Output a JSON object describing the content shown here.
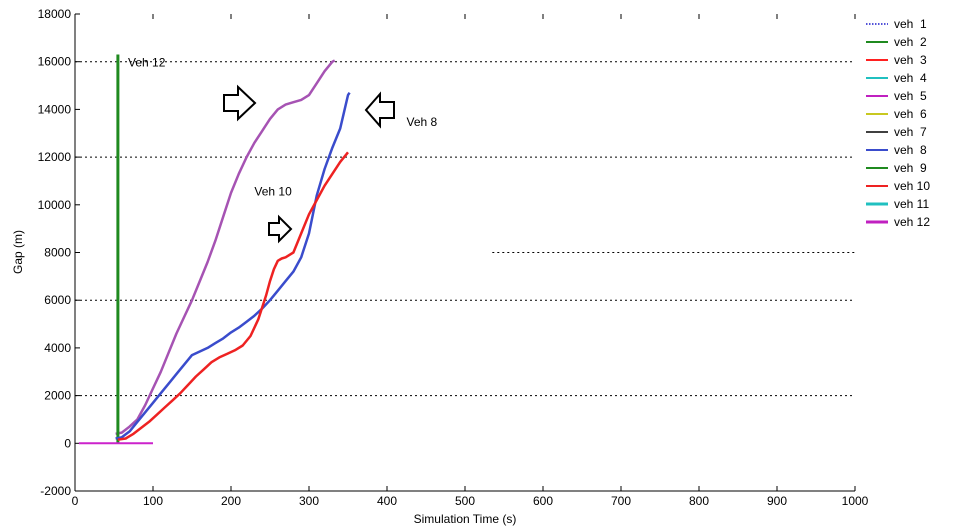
{
  "chart_data": {
    "type": "line",
    "xlabel": "Simulation Time (s)",
    "ylabel": "Gap (m)",
    "xlim": [
      0,
      1000
    ],
    "ylim": [
      -2000,
      18000
    ],
    "x_ticks": [
      "0",
      "100",
      "200",
      "300",
      "400",
      "500",
      "600",
      "700",
      "800",
      "900",
      "1000"
    ],
    "y_ticks": [
      "-2000",
      "0",
      "2000",
      "4000",
      "6000",
      "8000",
      "10000",
      "12000",
      "14000",
      "16000",
      "18000"
    ],
    "grid": "partial dashed horizontal lines",
    "legend_position": "right",
    "series": [
      {
        "name": "veh  1",
        "color": "#1a1acc",
        "style": "dotted",
        "x": [],
        "y": []
      },
      {
        "name": "veh  2",
        "color": "#1f8a1f",
        "style": "solid",
        "x": [],
        "y": []
      },
      {
        "name": "veh  3",
        "color": "#ff2020",
        "style": "solid",
        "x": [],
        "y": []
      },
      {
        "name": "veh  4",
        "color": "#20c0c0",
        "style": "solid",
        "x": [],
        "y": []
      },
      {
        "name": "veh  5",
        "color": "#c020c0",
        "style": "solid",
        "x": [],
        "y": []
      },
      {
        "name": "veh  6",
        "color": "#c8c820",
        "style": "solid",
        "x": [],
        "y": []
      },
      {
        "name": "veh  7",
        "color": "#404040",
        "style": "solid",
        "x": [],
        "y": []
      },
      {
        "name": "veh  8",
        "color": "#3a4ccc",
        "style": "solid",
        "x": [
          52,
          60,
          70,
          80,
          90,
          100,
          110,
          120,
          130,
          140,
          150,
          160,
          170,
          180,
          190,
          200,
          210,
          220,
          230,
          240,
          250,
          260,
          270,
          280,
          290,
          300,
          310,
          320,
          330,
          340,
          345,
          350,
          352
        ],
        "y": [
          200,
          250,
          500,
          900,
          1300,
          1700,
          2100,
          2500,
          2900,
          3300,
          3700,
          3850,
          4000,
          4200,
          4400,
          4650,
          4850,
          5100,
          5350,
          5650,
          6000,
          6400,
          6800,
          7200,
          7800,
          8800,
          10400,
          11500,
          12400,
          13200,
          13900,
          14600,
          14700
        ]
      },
      {
        "name": "veh  9",
        "color": "#1f8a1f",
        "style": "solid",
        "x": [],
        "y": []
      },
      {
        "name": "veh 10",
        "color": "#ee2222",
        "style": "solid",
        "x": [
          55,
          65,
          75,
          85,
          95,
          105,
          115,
          125,
          135,
          145,
          155,
          165,
          175,
          185,
          195,
          205,
          215,
          225,
          235,
          240,
          245,
          250,
          255,
          260,
          265,
          270,
          280,
          290,
          300,
          310,
          320,
          330,
          340,
          350
        ],
        "y": [
          150,
          200,
          400,
          650,
          900,
          1200,
          1500,
          1800,
          2100,
          2450,
          2800,
          3100,
          3400,
          3600,
          3750,
          3900,
          4100,
          4500,
          5200,
          5700,
          6200,
          6800,
          7300,
          7650,
          7750,
          7800,
          8000,
          8800,
          9600,
          10200,
          10800,
          11300,
          11800,
          12200
        ]
      },
      {
        "name": "veh 11",
        "color": "#20c0c0",
        "style": "thick",
        "x": [],
        "y": []
      },
      {
        "name": "veh 12",
        "color": "#c020c0",
        "style": "thick",
        "x": [],
        "y": []
      }
    ],
    "extra_series": [
      {
        "id": "purple-leader",
        "color": "#a653b3",
        "x": [
          52,
          60,
          70,
          80,
          90,
          100,
          110,
          120,
          130,
          140,
          150,
          160,
          170,
          180,
          190,
          200,
          210,
          220,
          230,
          240,
          250,
          260,
          270,
          280,
          290,
          300,
          310,
          320,
          330,
          333
        ],
        "y": [
          400,
          450,
          700,
          1000,
          1600,
          2300,
          3000,
          3800,
          4600,
          5300,
          6000,
          6800,
          7600,
          8500,
          9500,
          10500,
          11300,
          12000,
          12600,
          13100,
          13600,
          14000,
          14200,
          14300,
          14400,
          14600,
          15100,
          15600,
          16000,
          16050
        ]
      },
      {
        "id": "green-veh12",
        "color": "#1f8a1f",
        "x": [
          55,
          55
        ],
        "y": [
          0,
          16300
        ]
      },
      {
        "id": "magenta-base",
        "color": "#cc22cc",
        "x": [
          5,
          100
        ],
        "y": [
          0,
          0
        ]
      }
    ],
    "annotations": [
      {
        "text": "Veh 12",
        "x": 68,
        "y": 15800
      },
      {
        "text": "Veh 8",
        "x": 425,
        "y": 13300
      },
      {
        "text": "Veh 10",
        "x": 230,
        "y": 10400
      }
    ]
  }
}
